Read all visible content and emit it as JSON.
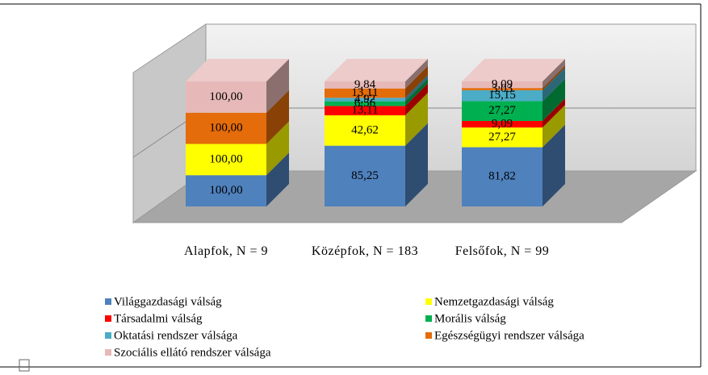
{
  "chart_data": {
    "type": "bar",
    "stacking": "percent",
    "three_d": true,
    "categories": [
      "Alapfok, N = 9",
      "Középfok, N = 183",
      "Felsőfok, N = 99"
    ],
    "series": [
      {
        "name": "Világgazdasági válság",
        "color": "#4f81bd",
        "values": [
          100,
          85.25,
          81.82
        ],
        "value_labels": [
          "100,00",
          "85,25",
          "81,82"
        ]
      },
      {
        "name": "Nemzetgazdasági válság",
        "color": "#ffff00",
        "values": [
          100,
          42.62,
          27.27
        ],
        "value_labels": [
          "100,00",
          "42,62",
          "27,27"
        ]
      },
      {
        "name": "Társadalmi válság",
        "color": "#ff0000",
        "values": [
          null,
          13.11,
          9.09
        ],
        "value_labels": [
          null,
          "13,11",
          "9,09"
        ]
      },
      {
        "name": "Morális válság",
        "color": "#00b050",
        "values": [
          null,
          6.56,
          27.27
        ],
        "value_labels": [
          null,
          "6,56",
          "27,27"
        ]
      },
      {
        "name": "Oktatási rendszer válsága",
        "color": "#4bacc6",
        "values": [
          null,
          4.92,
          15.15
        ],
        "value_labels": [
          null,
          "4,92",
          "15,15"
        ]
      },
      {
        "name": "Egészségügyi rendszer válsága",
        "color": "#e46c0a",
        "values": [
          100,
          13.11,
          3.03
        ],
        "value_labels": [
          "100,00",
          "13,11",
          "3,03"
        ]
      },
      {
        "name": "Szociális ellátó rendszer válsága",
        "color": "#e6b9b8",
        "values": [
          100,
          9.84,
          9.09
        ],
        "value_labels": [
          "100,00",
          "9,84",
          "9,09"
        ]
      }
    ],
    "legend": "bottom",
    "grid": true
  }
}
